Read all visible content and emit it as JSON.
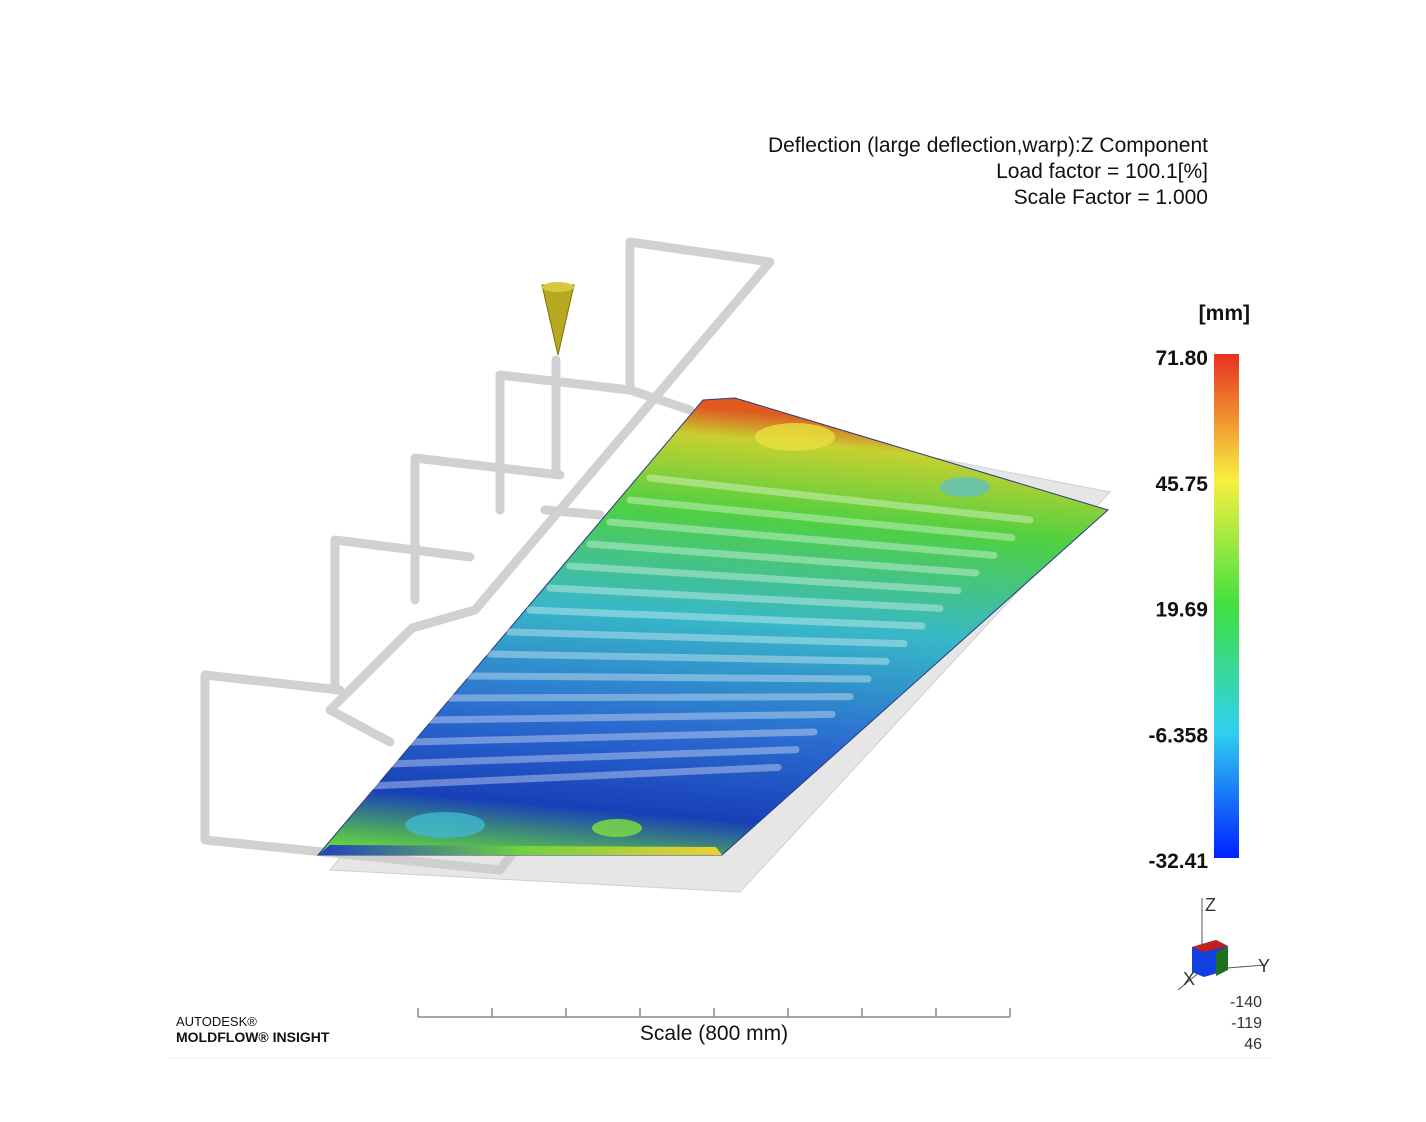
{
  "header": {
    "lines": [
      "Deflection (large deflection,warp):Z Component",
      "Load factor = 100.1[%]",
      "Scale Factor = 1.000"
    ]
  },
  "legend": {
    "unit": "[mm]",
    "labels": [
      "71.80",
      "45.75",
      "19.69",
      "-6.358",
      "-32.41"
    ]
  },
  "triad": {
    "axes": [
      "Z",
      "Y",
      "X"
    ],
    "coordinates": [
      "-140",
      "-119",
      "46"
    ]
  },
  "logo": {
    "brand": "AUTODESK®",
    "product": "MOLDFLOW® INSIGHT"
  },
  "scale_bar": {
    "label": "Scale (800 mm)"
  }
}
